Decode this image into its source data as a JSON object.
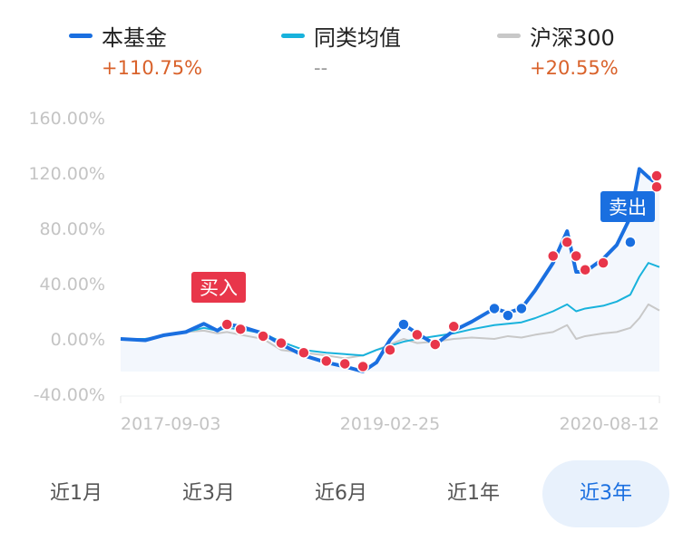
{
  "legend": [
    {
      "name": "本基金",
      "value": "+110.75%",
      "color": "#1a6fe0"
    },
    {
      "name": "同类均值",
      "value": "--",
      "color": "#18b2dc"
    },
    {
      "name": "沪深300",
      "value": "+20.55%",
      "color": "#c8c8c8"
    }
  ],
  "chart_data": {
    "type": "line",
    "ylim": [
      -40,
      160
    ],
    "yticks": [
      "160.00%",
      "120.00%",
      "80.00%",
      "40.00%",
      "0.00%",
      "-40.00%"
    ],
    "ytick_values": [
      160,
      120,
      80,
      40,
      0,
      -40
    ],
    "xlim": [
      "2017-09-03",
      "2020-08-12"
    ],
    "xticks": [
      "2017-09-03",
      "2019-02-25",
      "2020-08-12"
    ],
    "grid": false,
    "x": [
      "2017-09-03",
      "2017-10-22",
      "2017-11-27",
      "2018-01-11",
      "2018-02-16",
      "2018-03-15",
      "2018-04-03",
      "2018-04-30",
      "2018-06-14",
      "2018-07-20",
      "2018-09-03",
      "2018-10-18",
      "2018-11-24",
      "2018-12-30",
      "2019-01-26",
      "2019-02-22",
      "2019-03-21",
      "2019-04-17",
      "2019-05-23",
      "2019-06-29",
      "2019-08-04",
      "2019-09-18",
      "2019-10-15",
      "2019-11-11",
      "2019-12-08",
      "2020-01-13",
      "2020-02-10",
      "2020-02-28",
      "2020-03-17",
      "2020-04-22",
      "2020-05-19",
      "2020-06-15",
      "2020-07-03",
      "2020-07-21",
      "2020-08-12"
    ],
    "series": [
      {
        "name": "本基金",
        "color": "#1a6fe0",
        "values": [
          0,
          -1,
          2.6,
          5,
          11,
          6,
          10.5,
          9,
          4,
          -4,
          -12,
          -17,
          -20,
          -23.6,
          -17,
          -0.7,
          10.5,
          4,
          -4,
          6,
          12.5,
          22,
          19,
          22,
          35,
          55,
          78,
          48.5,
          48.5,
          58,
          68,
          88,
          123,
          117,
          110.75
        ]
      },
      {
        "name": "同类均值",
        "color": "#18b2dc",
        "values": [
          0,
          0,
          2,
          5,
          8,
          6,
          8,
          7,
          4,
          -2,
          -8,
          -10,
          -11,
          -12,
          -8,
          -5,
          -2,
          0,
          2,
          4,
          7,
          10,
          11,
          12,
          15,
          20,
          25,
          20,
          22,
          24,
          27,
          32,
          45,
          55,
          52
        ]
      },
      {
        "name": "沪深300",
        "color": "#c8c8c8",
        "values": [
          0,
          0,
          3,
          5,
          6,
          4,
          5,
          3,
          0,
          -8,
          -10,
          -12,
          -14,
          -12,
          -8,
          -4,
          0,
          -3,
          -2,
          0,
          1,
          0,
          2,
          1,
          3,
          5,
          10,
          0,
          2,
          4,
          5,
          8,
          15,
          25,
          20.55
        ]
      }
    ],
    "markers": [
      {
        "date": "2018-04-03",
        "value": 10.5,
        "type": "buy",
        "color": "#e8364a"
      },
      {
        "date": "2018-04-30",
        "value": 7,
        "type": "buy",
        "color": "#e8364a"
      },
      {
        "date": "2018-06-14",
        "value": 2,
        "type": "buy",
        "color": "#e8364a"
      },
      {
        "date": "2018-07-20",
        "value": -3,
        "type": "buy",
        "color": "#e8364a"
      },
      {
        "date": "2018-09-03",
        "value": -10,
        "type": "buy",
        "color": "#e8364a"
      },
      {
        "date": "2018-10-18",
        "value": -16,
        "type": "buy",
        "color": "#e8364a"
      },
      {
        "date": "2018-11-24",
        "value": -18,
        "type": "buy",
        "color": "#e8364a"
      },
      {
        "date": "2018-12-30",
        "value": -20,
        "type": "buy",
        "color": "#e8364a"
      },
      {
        "date": "2019-02-22",
        "value": -8,
        "type": "buy",
        "color": "#e8364a"
      },
      {
        "date": "2019-03-21",
        "value": 10.5,
        "type": "sell",
        "color": "#1a6fe0"
      },
      {
        "date": "2019-04-17",
        "value": 3,
        "type": "buy",
        "color": "#e8364a"
      },
      {
        "date": "2019-05-23",
        "value": -4,
        "type": "buy",
        "color": "#e8364a"
      },
      {
        "date": "2019-06-29",
        "value": 9,
        "type": "buy",
        "color": "#e8364a"
      },
      {
        "date": "2019-09-18",
        "value": 22,
        "type": "sell",
        "color": "#1a6fe0"
      },
      {
        "date": "2019-10-15",
        "value": 17,
        "type": "sell",
        "color": "#1a6fe0"
      },
      {
        "date": "2019-11-11",
        "value": 22,
        "type": "sell",
        "color": "#1a6fe0"
      },
      {
        "date": "2020-01-13",
        "value": 60,
        "type": "buy",
        "color": "#e8364a"
      },
      {
        "date": "2020-02-10",
        "value": 70,
        "type": "buy",
        "color": "#e8364a"
      },
      {
        "date": "2020-02-28",
        "value": 60,
        "type": "buy",
        "color": "#e8364a"
      },
      {
        "date": "2020-03-17",
        "value": 50,
        "type": "buy",
        "color": "#e8364a"
      },
      {
        "date": "2020-04-22",
        "value": 55,
        "type": "buy",
        "color": "#e8364a"
      },
      {
        "date": "2020-06-15",
        "value": 70,
        "type": "sell",
        "color": "#1a6fe0"
      },
      {
        "date": "2020-08-12",
        "value": 118,
        "type": "buy",
        "color": "#e8364a"
      },
      {
        "date": "2020-08-12",
        "value": 110,
        "type": "buy",
        "color": "#e8364a"
      }
    ],
    "annotations": [
      {
        "text": "买入",
        "date": "2018-04-03",
        "value": 10.5,
        "color": "#e8364a"
      },
      {
        "text": "卖出",
        "date": "2020-07-03",
        "value": 123,
        "color": "#1a6fe0"
      }
    ]
  },
  "tabs": [
    {
      "label": "近1月",
      "active": false
    },
    {
      "label": "近3月",
      "active": false
    },
    {
      "label": "近6月",
      "active": false
    },
    {
      "label": "近1年",
      "active": false
    },
    {
      "label": "近3年",
      "active": true
    }
  ]
}
